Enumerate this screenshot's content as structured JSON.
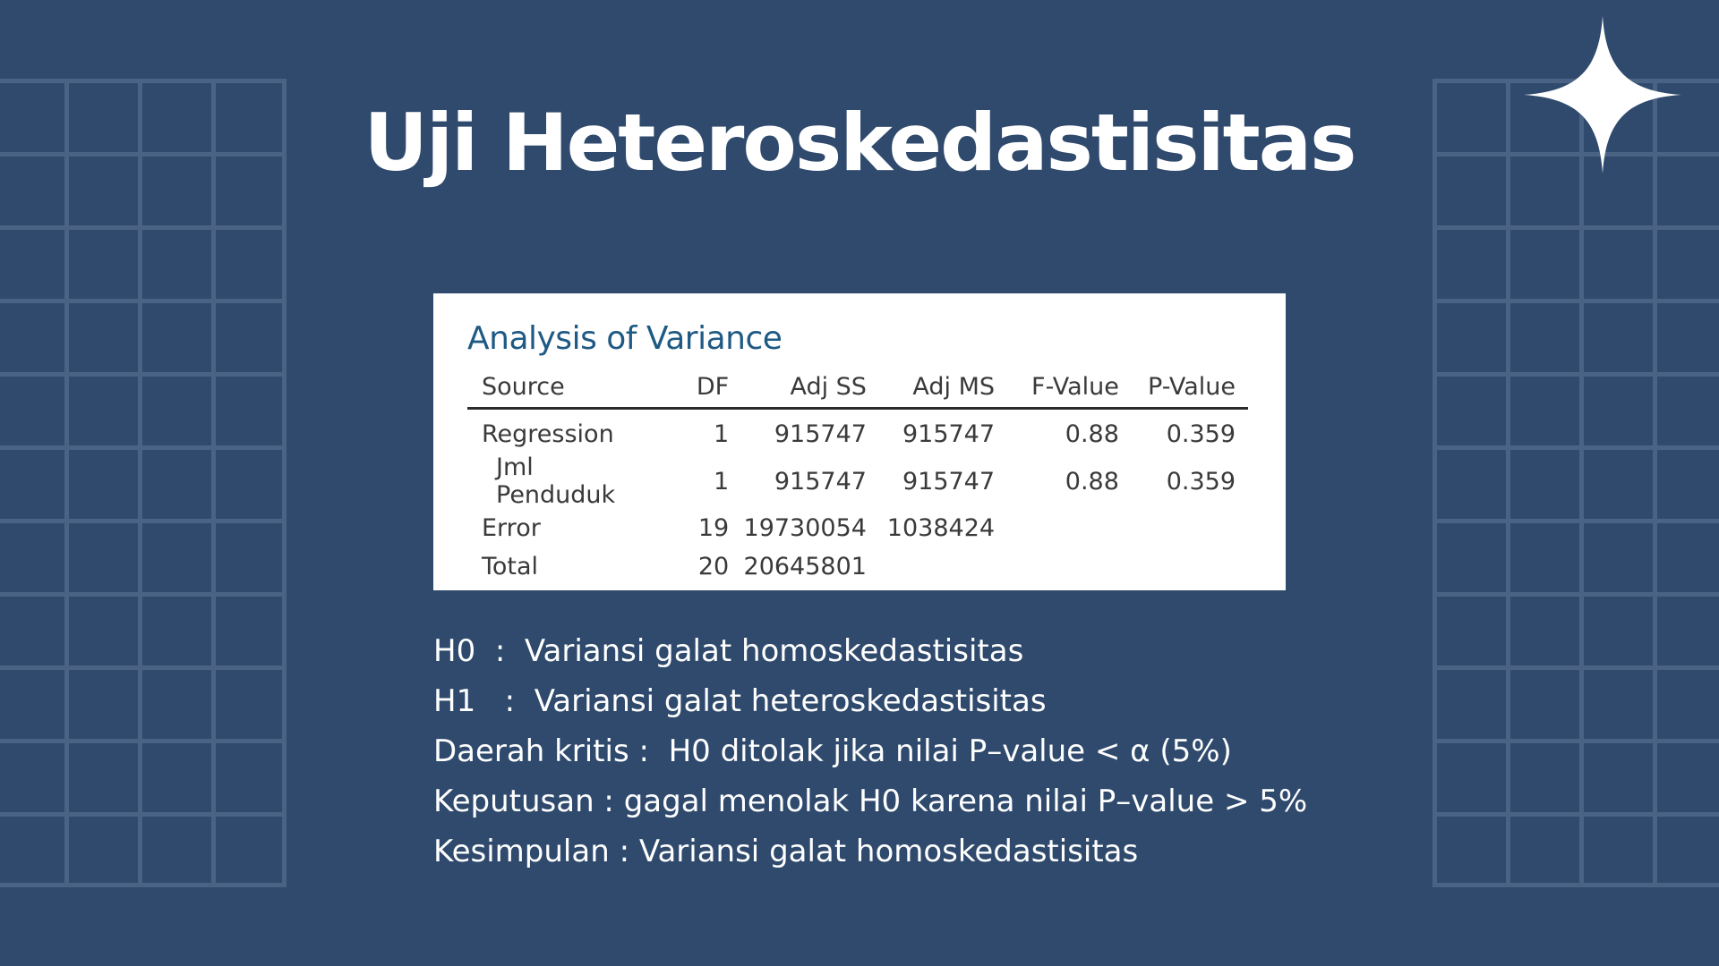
{
  "slide": {
    "title": "Uji Heteroskedastisitas",
    "background_color": "#2f4a6d",
    "decoration_icon": "four-point-star-icon"
  },
  "anova": {
    "heading": "Analysis of Variance",
    "columns": [
      "Source",
      "DF",
      "Adj SS",
      "Adj MS",
      "F-Value",
      "P-Value"
    ],
    "rows": [
      {
        "source": "Regression",
        "df": "1",
        "adj_ss": "915747",
        "adj_ms": "915747",
        "f_value": "0.88",
        "p_value": "0.359"
      },
      {
        "source": "Jml Penduduk",
        "df": "1",
        "adj_ss": "915747",
        "adj_ms": "915747",
        "f_value": "0.88",
        "p_value": "0.359"
      },
      {
        "source": "Error",
        "df": "19",
        "adj_ss": "19730054",
        "adj_ms": "1038424",
        "f_value": "",
        "p_value": ""
      },
      {
        "source": "Total",
        "df": "20",
        "adj_ss": "20645801",
        "adj_ms": "",
        "f_value": "",
        "p_value": ""
      }
    ]
  },
  "notes": {
    "h0": "H0  :  Variansi galat homoskedastisitas",
    "h1": "H1   :  Variansi galat heteroskedastisitas",
    "critical_region": "Daerah kritis :  H0 ditolak jika nilai P–value < α (5%)",
    "decision": "Keputusan : gagal menolak H0 karena nilai P–value > 5%",
    "conclusion": "Kesimpulan : Variansi galat homoskedastisitas"
  }
}
